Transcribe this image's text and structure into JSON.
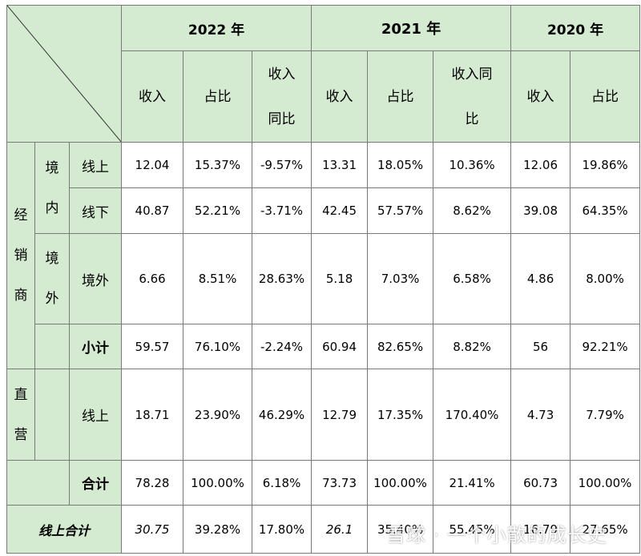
{
  "header": {
    "years": [
      "2022 年",
      "2021 年",
      "2020 年"
    ],
    "cols": [
      "收入",
      "占比",
      "收入同比",
      "收入",
      "占比",
      "收入同比",
      "收入",
      "占比"
    ]
  },
  "labels": {
    "dealer": "经销商",
    "domestic": "境内",
    "overseas_group": "境外",
    "direct": "直营",
    "online": "线上",
    "offline": "线下",
    "overseas": "境外",
    "subtotal": "小计",
    "total": "合计",
    "online_total": "线上合计"
  },
  "rows": {
    "dealer_online": [
      "12.04",
      "15.37%",
      "-9.57%",
      "13.31",
      "18.05%",
      "10.36%",
      "12.06",
      "19.86%"
    ],
    "dealer_offline": [
      "40.87",
      "52.21%",
      "-3.71%",
      "42.45",
      "57.57%",
      "8.62%",
      "39.08",
      "64.35%"
    ],
    "dealer_overseas": [
      "6.66",
      "8.51%",
      "28.63%",
      "5.18",
      "7.03%",
      "6.58%",
      "4.86",
      "8.00%"
    ],
    "dealer_subtotal": [
      "59.57",
      "76.10%",
      "-2.24%",
      "60.94",
      "82.65%",
      "8.82%",
      "56",
      "92.21%"
    ],
    "direct_online": [
      "18.71",
      "23.90%",
      "46.29%",
      "12.79",
      "17.35%",
      "170.40%",
      "4.73",
      "7.79%"
    ],
    "total": [
      "78.28",
      "100.00%",
      "6.18%",
      "73.73",
      "100.00%",
      "21.41%",
      "60.73",
      "100.00%"
    ],
    "online_total": [
      "30.75",
      "39.28%",
      "17.80%",
      "26.1",
      "35.40%",
      "55.45%",
      "16.79",
      "27.65%"
    ]
  },
  "watermark": "雪球 · 一个小散的成长史"
}
